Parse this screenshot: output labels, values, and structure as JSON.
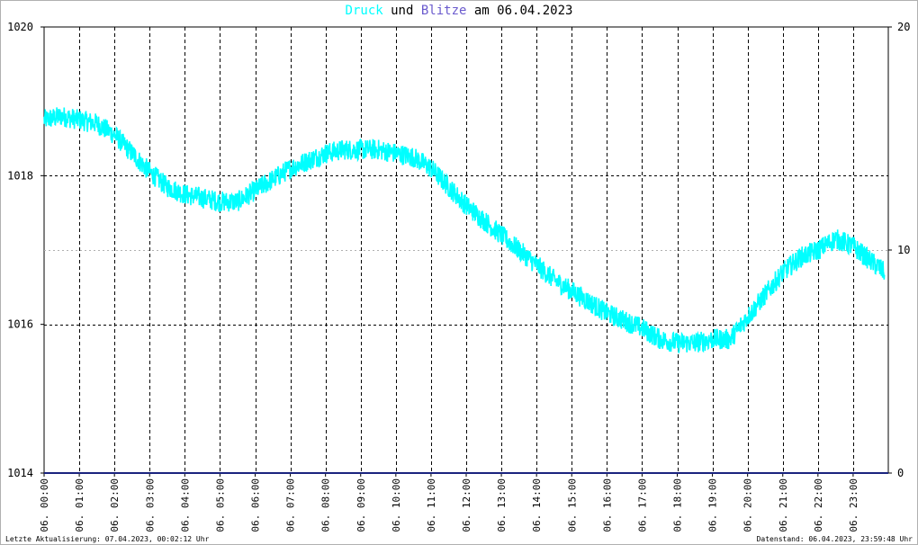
{
  "title": {
    "series1": "Druck",
    "connector1": "und",
    "series2": "Blitze",
    "connector2": "am",
    "date": "06.04.2023",
    "series1_color": "#00ffff",
    "series2_color": "#6a5acd"
  },
  "footer": {
    "left": "Letzte Aktualisierung: 07.04.2023, 00:02:12 Uhr",
    "right": "Datenstand: 06.04.2023, 23:59:48 Uhr"
  },
  "chart_data": {
    "type": "line",
    "title": "Druck und Blitze am 06.04.2023",
    "x_unit": "hours",
    "xlim": [
      0,
      24
    ],
    "y_left": {
      "ylim": [
        1014,
        1020
      ],
      "ticks": [
        "1014",
        "1016",
        "1018",
        "1020"
      ]
    },
    "y_right": {
      "ylim": [
        0,
        20
      ],
      "ticks": [
        "0",
        "10",
        "20"
      ]
    },
    "x_tick_labels": [
      "06. 00:00",
      "06. 01:00",
      "06. 02:00",
      "06. 03:00",
      "06. 04:00",
      "06. 05:00",
      "06. 06:00",
      "06. 07:00",
      "06. 08:00",
      "06. 09:00",
      "06. 10:00",
      "06. 11:00",
      "06. 12:00",
      "06. 13:00",
      "06. 14:00",
      "06. 15:00",
      "06. 16:00",
      "06. 17:00",
      "06. 18:00",
      "06. 19:00",
      "06. 20:00",
      "06. 21:00",
      "06. 22:00",
      "06. 23:00"
    ],
    "grid": true,
    "series": [
      {
        "name": "Druck",
        "color": "#00ffff",
        "axis": "left",
        "x": [
          0,
          0.5,
          1,
          1.5,
          2,
          2.5,
          3,
          3.5,
          4,
          4.5,
          5,
          5.5,
          6,
          6.5,
          7,
          7.5,
          8,
          8.5,
          9,
          9.5,
          10,
          10.5,
          11,
          11.5,
          12,
          12.5,
          13,
          13.5,
          14,
          14.5,
          15,
          15.5,
          16,
          16.5,
          17,
          17.5,
          18,
          18.5,
          19,
          19.5,
          20,
          20.5,
          21,
          21.5,
          22,
          22.5,
          23,
          23.5,
          23.9
        ],
        "y": [
          1018.75,
          1018.8,
          1018.75,
          1018.7,
          1018.55,
          1018.3,
          1018.05,
          1017.85,
          1017.75,
          1017.7,
          1017.65,
          1017.65,
          1017.8,
          1017.95,
          1018.1,
          1018.2,
          1018.3,
          1018.35,
          1018.35,
          1018.35,
          1018.3,
          1018.25,
          1018.1,
          1017.85,
          1017.6,
          1017.4,
          1017.2,
          1017.0,
          1016.8,
          1016.6,
          1016.45,
          1016.3,
          1016.15,
          1016.05,
          1015.95,
          1015.8,
          1015.75,
          1015.75,
          1015.8,
          1015.8,
          1016.1,
          1016.4,
          1016.7,
          1016.9,
          1017.0,
          1017.15,
          1017.05,
          1016.85,
          1016.7
        ]
      },
      {
        "name": "Blitze",
        "color": "#1a237e",
        "axis": "right",
        "x": [
          0,
          24
        ],
        "y": [
          0,
          0
        ]
      }
    ]
  }
}
